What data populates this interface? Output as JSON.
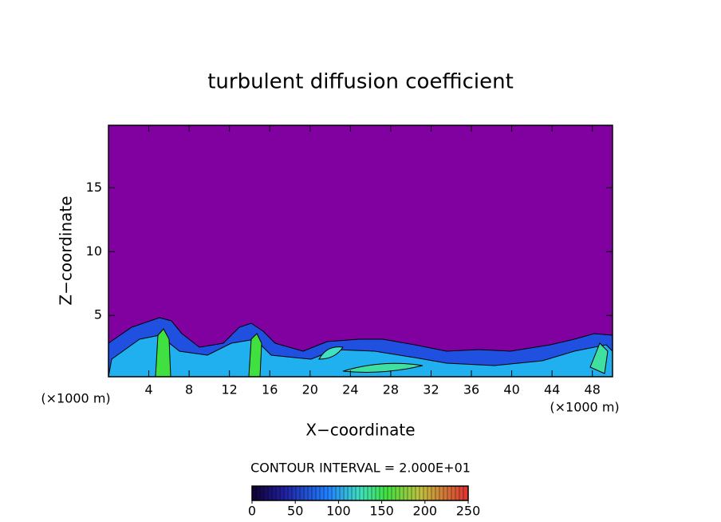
{
  "chart_data": {
    "type": "contour",
    "title": "turbulent diffusion coefficient",
    "xlabel": "X−coordinate",
    "ylabel": "Z−coordinate",
    "x_unit_label": "(×1000 m)",
    "xlim": [
      0,
      50
    ],
    "ylim": [
      0.2,
      19.9
    ],
    "xticks": [
      4,
      8,
      12,
      16,
      20,
      24,
      28,
      32,
      36,
      40,
      44,
      48
    ],
    "yticks": [
      5,
      10,
      15
    ],
    "contour_interval_label": "CONTOUR INTERVAL = 2.000E+01",
    "colorbar": {
      "lim": [
        0,
        250
      ],
      "ticks": [
        0,
        50,
        100,
        150,
        200,
        250
      ]
    },
    "color": "#8000a0"
  }
}
